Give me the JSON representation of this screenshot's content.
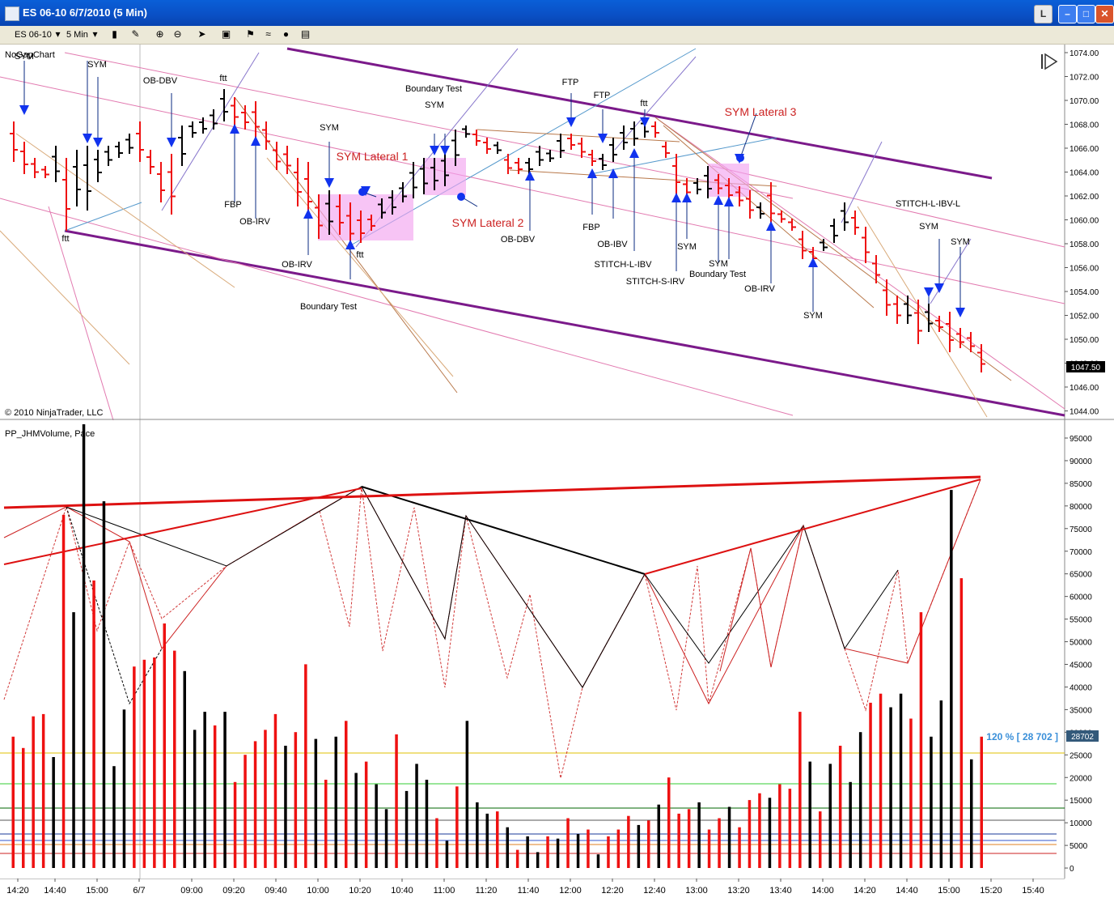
{
  "window": {
    "title": "ES 06-10  6/7/2010 (5 Min)",
    "l_button": "L"
  },
  "toolbar": {
    "instrument": "ES 06-10",
    "interval": "5 Min"
  },
  "price_panel": {
    "chart_label": "NoGapChart",
    "copyright": "© 2010 NinjaTrader, LLC",
    "last_price": "1047.50",
    "y_ticks": [
      "1074.00",
      "1072.00",
      "1070.00",
      "1068.00",
      "1066.00",
      "1064.00",
      "1062.00",
      "1060.00",
      "1058.00",
      "1056.00",
      "1054.00",
      "1052.00",
      "1050.00",
      "1048.00",
      "1046.00",
      "1044.00"
    ],
    "annotations": [
      {
        "text": "SYM",
        "color": "#000000"
      },
      {
        "text": "SYM",
        "color": "#000000"
      },
      {
        "text": "OB-DBV",
        "color": "#000000"
      },
      {
        "text": "ftt",
        "color": "#000000"
      },
      {
        "text": "ftt",
        "color": "#000000"
      },
      {
        "text": "FBP",
        "color": "#000000"
      },
      {
        "text": "OB-IRV",
        "color": "#000000"
      },
      {
        "text": "SYM",
        "color": "#000000"
      },
      {
        "text": "SYM Lateral 1",
        "color": "#cc2222"
      },
      {
        "text": "OB-IRV",
        "color": "#000000"
      },
      {
        "text": "ftt",
        "color": "#000000"
      },
      {
        "text": "Boundary Test",
        "color": "#000000"
      },
      {
        "text": "Boundary Test",
        "color": "#000000"
      },
      {
        "text": "SYM",
        "color": "#000000"
      },
      {
        "text": "SYM Lateral 2",
        "color": "#cc2222"
      },
      {
        "text": "OB-DBV",
        "color": "#000000"
      },
      {
        "text": "FTP",
        "color": "#000000"
      },
      {
        "text": "FTP",
        "color": "#000000"
      },
      {
        "text": "ftt",
        "color": "#000000"
      },
      {
        "text": "FBP",
        "color": "#000000"
      },
      {
        "text": "OB-IBV",
        "color": "#000000"
      },
      {
        "text": "STITCH-L-IBV",
        "color": "#000000"
      },
      {
        "text": "STITCH-S-IRV",
        "color": "#000000"
      },
      {
        "text": "SYM Lateral 3",
        "color": "#cc2222"
      },
      {
        "text": "SYM",
        "color": "#000000"
      },
      {
        "text": "SYM",
        "color": "#000000"
      },
      {
        "text": "Boundary Test",
        "color": "#000000"
      },
      {
        "text": "OB-IRV",
        "color": "#000000"
      },
      {
        "text": "SYM",
        "color": "#000000"
      },
      {
        "text": "STITCH-L-IBV-L",
        "color": "#000000"
      },
      {
        "text": "SYM",
        "color": "#000000"
      },
      {
        "text": "SYM",
        "color": "#000000"
      }
    ]
  },
  "volume_panel": {
    "label": "PP_JHMVolume, Pace",
    "pace_label": "120 % [ 28 702 ]",
    "last_volume": "28702",
    "y_ticks": [
      "95000",
      "90000",
      "85000",
      "80000",
      "75000",
      "70000",
      "65000",
      "60000",
      "55000",
      "50000",
      "45000",
      "40000",
      "35000",
      "30000",
      "25000",
      "20000",
      "15000",
      "10000",
      "5000",
      "0"
    ]
  },
  "x_axis": {
    "ticks": [
      "14:20",
      "14:40",
      "15:00",
      "6/7",
      "09:00",
      "09:20",
      "09:40",
      "10:00",
      "10:20",
      "10:40",
      "11:00",
      "11:20",
      "11:40",
      "12:00",
      "12:20",
      "12:40",
      "13:00",
      "13:20",
      "13:40",
      "14:00",
      "14:20",
      "14:40",
      "15:00",
      "15:20",
      "15:40"
    ]
  },
  "chart_data": {
    "type": "bar",
    "title": "",
    "series": [
      {
        "name": "PP_JHMVolume",
        "values": [
          29000,
          26500,
          33500,
          34000,
          24500,
          78000,
          56500,
          98000,
          63500,
          81000,
          22500,
          35000,
          44500,
          46000,
          46500,
          54000,
          48000,
          43500,
          30500,
          34500,
          31500,
          34500,
          19000,
          25000,
          28000,
          30500,
          34000,
          27000,
          30000,
          45000,
          28500,
          19500,
          29000,
          32500,
          21000,
          23500,
          18500,
          13000,
          29500,
          17000,
          23000,
          19500,
          11000,
          6000,
          18000,
          32500,
          14500,
          12000,
          12500,
          9000,
          4000,
          7000,
          3500,
          7000,
          6500,
          11000,
          7500,
          8500,
          3000,
          7000,
          8500,
          11500,
          9500,
          10500,
          14000,
          20000,
          12000,
          13000,
          14500,
          8500,
          11000,
          13500,
          9000,
          15000,
          16500,
          15500,
          18500,
          17500,
          34500,
          23500,
          12500,
          23000,
          27000,
          19000,
          30000,
          36500,
          38500,
          35500,
          38500,
          33000,
          56500,
          29000,
          37000,
          83500,
          64000,
          24000,
          29000
        ]
      }
    ],
    "ylim": [
      0,
      98000
    ]
  }
}
